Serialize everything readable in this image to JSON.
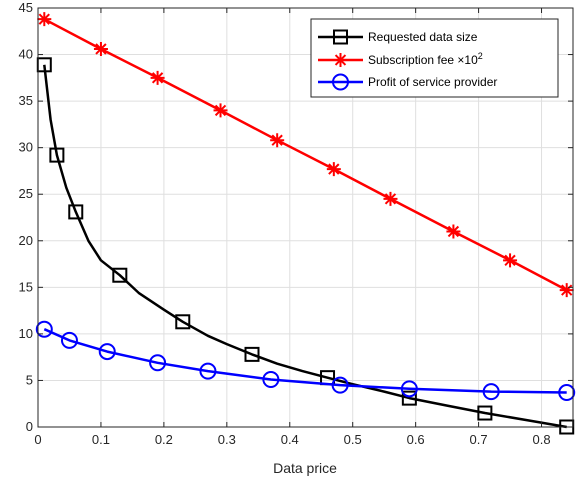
{
  "chart_data": {
    "type": "line",
    "xlabel": "Data price",
    "ylabel": "",
    "xlim": [
      0,
      0.85
    ],
    "ylim": [
      0,
      45
    ],
    "xticks": [
      0,
      0.1,
      0.2,
      0.3,
      0.4,
      0.5,
      0.6,
      0.7,
      0.8
    ],
    "xtick_labels": [
      "0",
      "0.1",
      "0.2",
      "0.3",
      "0.4",
      "0.5",
      "0.6",
      "0.7",
      "0.8"
    ],
    "yticks": [
      0,
      5,
      10,
      15,
      20,
      25,
      30,
      35,
      40,
      45
    ],
    "ytick_labels": [
      "0",
      "5",
      "10",
      "15",
      "20",
      "25",
      "30",
      "35",
      "40",
      "45"
    ],
    "grid": true,
    "legend_position": "top-right",
    "series": [
      {
        "name": "Requested data size",
        "color": "#000000",
        "marker": "square",
        "x": [
          0.01,
          0.02,
          0.03,
          0.045,
          0.06,
          0.08,
          0.1,
          0.13,
          0.16,
          0.2,
          0.23,
          0.27,
          0.3,
          0.34,
          0.38,
          0.42,
          0.46,
          0.5,
          0.55,
          0.59,
          0.65,
          0.71,
          0.78,
          0.84
        ],
        "y": [
          38.9,
          33.0,
          29.2,
          25.7,
          23.1,
          20.0,
          17.9,
          16.3,
          14.4,
          12.6,
          11.3,
          9.8,
          8.9,
          7.8,
          6.8,
          6.0,
          5.3,
          4.6,
          3.8,
          3.1,
          2.3,
          1.5,
          0.7,
          0.0
        ],
        "marker_x": [
          0.01,
          0.03,
          0.06,
          0.13,
          0.23,
          0.34,
          0.46,
          0.59,
          0.71,
          0.84
        ],
        "marker_y": [
          38.9,
          29.2,
          23.1,
          16.3,
          11.3,
          7.8,
          5.3,
          3.1,
          1.5,
          0.0
        ]
      },
      {
        "name": "Subscription fee",
        "legend_suffix": "×10",
        "legend_sup": "2",
        "color": "#ff0000",
        "marker": "asterisk",
        "x": [
          0.01,
          0.1,
          0.19,
          0.29,
          0.38,
          0.47,
          0.56,
          0.66,
          0.75,
          0.84
        ],
        "y": [
          43.8,
          40.6,
          37.5,
          34.0,
          30.8,
          27.7,
          24.5,
          21.0,
          17.9,
          14.7
        ],
        "marker_x": [
          0.01,
          0.1,
          0.19,
          0.29,
          0.38,
          0.47,
          0.56,
          0.66,
          0.75,
          0.84
        ],
        "marker_y": [
          43.8,
          40.6,
          37.5,
          34.0,
          30.8,
          27.7,
          24.5,
          21.0,
          17.9,
          14.7
        ]
      },
      {
        "name": "Profit of service provider",
        "color": "#0000ff",
        "marker": "circle",
        "x": [
          0.01,
          0.05,
          0.11,
          0.19,
          0.27,
          0.37,
          0.48,
          0.59,
          0.72,
          0.84
        ],
        "y": [
          10.5,
          9.3,
          8.1,
          6.9,
          6.0,
          5.1,
          4.5,
          4.1,
          3.8,
          3.7
        ],
        "marker_x": [
          0.01,
          0.05,
          0.11,
          0.19,
          0.27,
          0.37,
          0.48,
          0.59,
          0.72,
          0.84
        ],
        "marker_y": [
          10.5,
          9.3,
          8.1,
          6.9,
          6.0,
          5.1,
          4.5,
          4.1,
          3.8,
          3.7
        ]
      }
    ]
  }
}
